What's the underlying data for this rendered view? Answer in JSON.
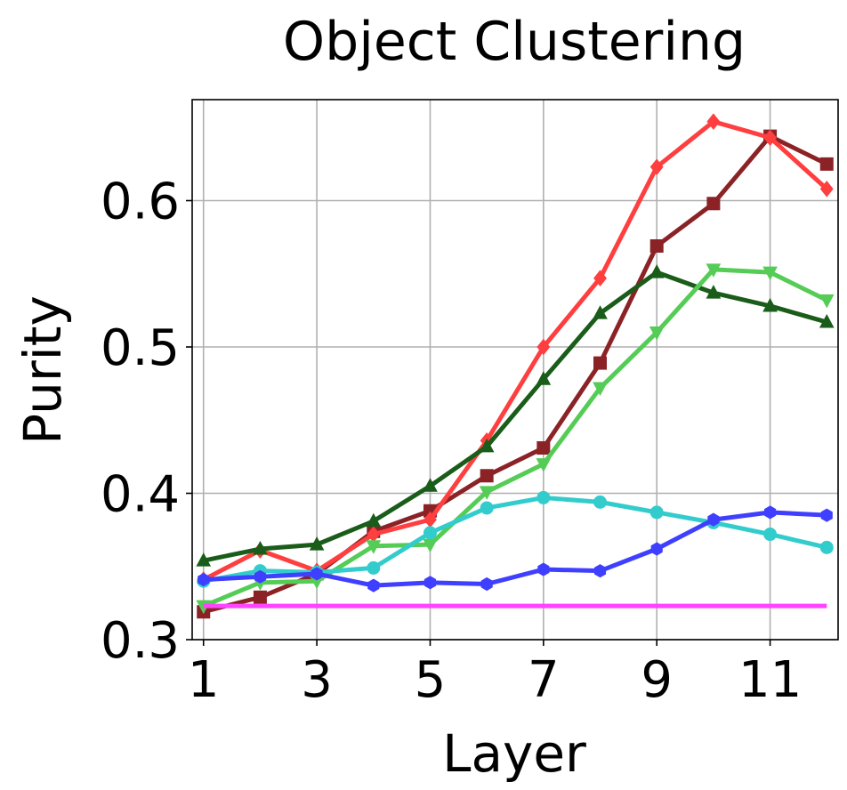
{
  "chart_data": {
    "type": "line",
    "title": "Object Clustering",
    "xlabel": "Layer",
    "ylabel": "Purity",
    "x": [
      1,
      2,
      3,
      4,
      5,
      6,
      7,
      8,
      9,
      10,
      11,
      12
    ],
    "xlim": [
      0.8,
      12.2
    ],
    "ylim": [
      0.3,
      0.669
    ],
    "xticks": [
      1,
      3,
      5,
      7,
      9,
      11
    ],
    "xtick_labels": [
      "1",
      "3",
      "5",
      "7",
      "9",
      "11"
    ],
    "yticks": [
      0.3,
      0.4,
      0.5,
      0.6
    ],
    "ytick_labels": [
      "0.3",
      "0.4",
      "0.5",
      "0.6"
    ],
    "grid": true,
    "legend": false,
    "series": [
      {
        "color": "#8b2226",
        "marker": "square",
        "values": [
          0.319,
          0.329,
          0.345,
          0.374,
          0.388,
          0.412,
          0.431,
          0.489,
          0.569,
          0.598,
          0.644,
          0.625
        ]
      },
      {
        "color": "#ff3f3f",
        "marker": "diamond",
        "values": [
          0.341,
          0.361,
          0.347,
          0.372,
          0.382,
          0.436,
          0.5,
          0.547,
          0.623,
          0.654,
          0.643,
          0.608
        ]
      },
      {
        "color": "#1a5c1a",
        "marker": "triangle-up",
        "values": [
          0.354,
          0.362,
          0.365,
          0.381,
          0.405,
          0.432,
          0.478,
          0.523,
          0.551,
          0.537,
          0.528,
          0.517
        ]
      },
      {
        "color": "#55cc55",
        "marker": "triangle-down",
        "values": [
          0.323,
          0.339,
          0.34,
          0.364,
          0.365,
          0.401,
          0.42,
          0.472,
          0.51,
          0.553,
          0.551,
          0.532
        ]
      },
      {
        "color": "#33cccc",
        "marker": "circle",
        "values": [
          0.34,
          0.347,
          0.346,
          0.349,
          0.373,
          0.39,
          0.397,
          0.394,
          0.387,
          0.38,
          0.372,
          0.363
        ]
      },
      {
        "color": "#3f3fff",
        "marker": "hexagon",
        "values": [
          0.341,
          0.343,
          0.345,
          0.337,
          0.339,
          0.338,
          0.348,
          0.347,
          0.362,
          0.382,
          0.387,
          0.385
        ]
      },
      {
        "color": "#ff44ff",
        "marker": "none",
        "values": [
          0.323,
          0.323,
          0.323,
          0.323,
          0.323,
          0.323,
          0.323,
          0.323,
          0.323,
          0.323,
          0.323,
          0.323
        ]
      }
    ]
  }
}
